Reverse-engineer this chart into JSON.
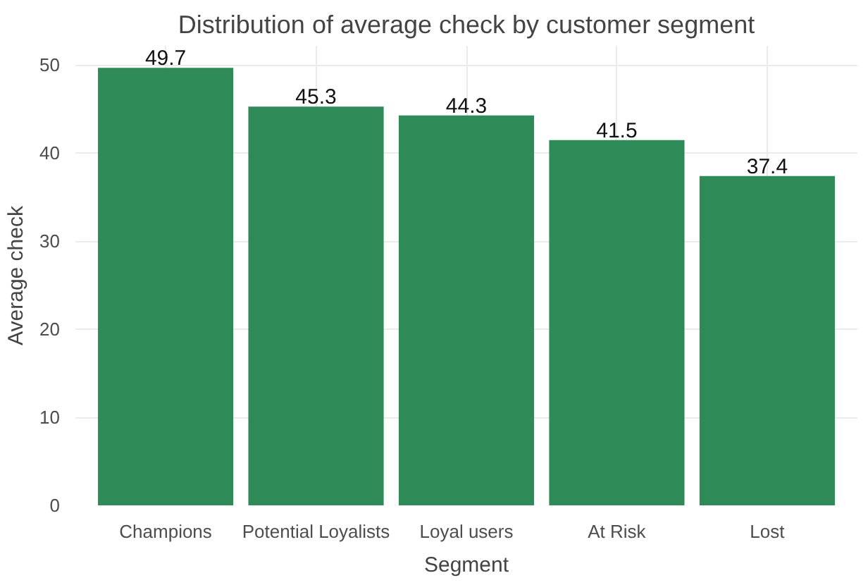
{
  "chart_data": {
    "type": "bar",
    "title": "Distribution of average check by customer segment",
    "xlabel": "Segment",
    "ylabel": "Average check",
    "categories": [
      "Champions",
      "Potential Loyalists",
      "Loyal users",
      "At Risk",
      "Lost"
    ],
    "values": [
      49.7,
      45.3,
      44.3,
      41.5,
      37.4
    ],
    "color": "#2e8b57",
    "ylim": [
      0,
      52.2
    ],
    "yticks": [
      0,
      10,
      20,
      30,
      40,
      50
    ],
    "grid": true,
    "data_labels": true
  }
}
